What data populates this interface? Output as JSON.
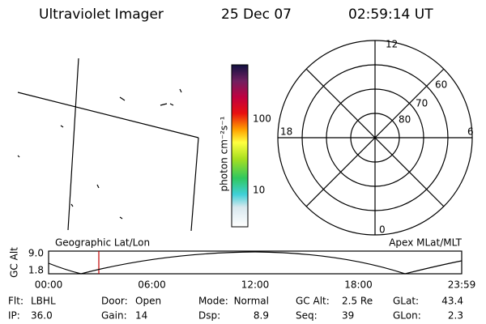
{
  "header": {
    "instrument": "Ultraviolet Imager",
    "date": "25 Dec 07",
    "time": "02:59:14 UT"
  },
  "colorbar": {
    "label": "photon cm⁻²s⁻¹",
    "ticks": [
      "100",
      "10"
    ]
  },
  "polar": {
    "mlt_labels": [
      "12",
      "6",
      "0",
      "18"
    ],
    "lat_labels": [
      "60",
      "70",
      "80"
    ]
  },
  "map_labels": {
    "left": "Geographic Lat/Lon",
    "right": "Apex MLat/MLT"
  },
  "timeline": {
    "ylabel": "GC Alt",
    "yticks": [
      "9.0",
      "1.8"
    ],
    "xticks": [
      "00:00",
      "06:00",
      "12:00",
      "18:00",
      "23:59"
    ]
  },
  "status": [
    [
      {
        "label": "Flt:",
        "value": "LBHL"
      },
      {
        "label": "Door:",
        "value": "Open"
      },
      {
        "label": "Mode:",
        "value": "Normal"
      },
      {
        "label": "GC Alt:",
        "value": "2.5 Re"
      },
      {
        "label": "GLat:",
        "value": "43.4"
      }
    ],
    [
      {
        "label": "IP:",
        "value": "36.0"
      },
      {
        "label": "Gain:",
        "value": "14"
      },
      {
        "label": "Dsp:",
        "value": "8.9"
      },
      {
        "label": "Seq:",
        "value": "39"
      },
      {
        "label": "GLon:",
        "value": "2.3"
      }
    ]
  ]
}
